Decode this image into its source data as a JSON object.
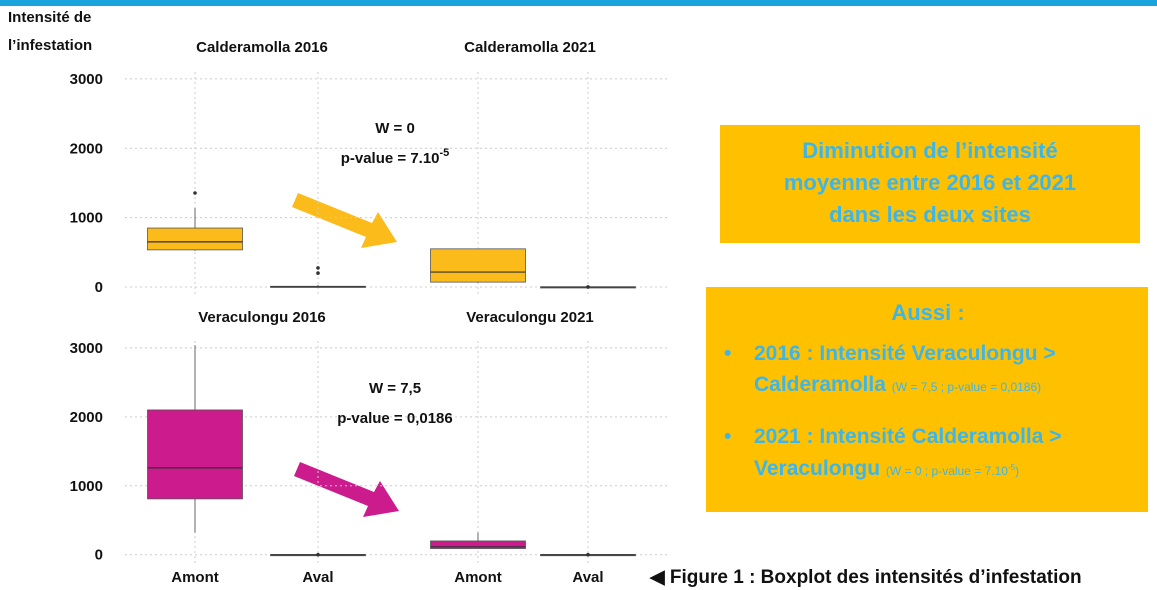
{
  "chart_data": [
    {
      "type": "box",
      "ylabel": [
        "Intensité de",
        "l’infestation"
      ],
      "titles": [
        "Calderamolla 2016",
        "Calderamolla 2021"
      ],
      "categories": [
        null,
        null,
        null,
        null
      ],
      "ylim": [
        -120,
        3100
      ],
      "yticks": [
        0,
        1000,
        2000,
        3000
      ],
      "grid": true,
      "color": "#fbbb1a",
      "boxes": [
        {
          "min": 520,
          "q1": 535,
          "median": 650,
          "q3": 850,
          "max": 1140,
          "outliers": [
            1355
          ]
        },
        {
          "min": 0,
          "q1": 0,
          "median": 0,
          "q3": 10,
          "max": 30,
          "outliers": [
            200,
            275
          ]
        },
        {
          "min": 60,
          "q1": 70,
          "median": 215,
          "q3": 550,
          "max": 550,
          "outliers": []
        },
        {
          "min": 0,
          "q1": 0,
          "median": 0,
          "q3": 0,
          "max": 0,
          "outliers": [
            0
          ]
        }
      ],
      "annotation": {
        "lines": [
          "W = 0",
          "p-value = 7.10"
        ],
        "sup": "-5"
      }
    },
    {
      "type": "box",
      "titles": [
        "Veraculongu 2016",
        "Veraculongu 2021"
      ],
      "categories": [
        "Amont",
        "Aval",
        "Amont",
        "Aval"
      ],
      "ylim": [
        -120,
        3100
      ],
      "yticks": [
        0,
        1000,
        2000,
        3000
      ],
      "grid": true,
      "color": "#cc1b8c",
      "boxes": [
        {
          "min": 320,
          "q1": 810,
          "median": 1260,
          "q3": 2100,
          "max": 3040,
          "outliers": []
        },
        {
          "min": 0,
          "q1": 0,
          "median": 0,
          "q3": 0,
          "max": 0,
          "outliers": [
            0
          ]
        },
        {
          "min": 90,
          "q1": 90,
          "median": 115,
          "q3": 200,
          "max": 320,
          "outliers": []
        },
        {
          "min": 0,
          "q1": 0,
          "median": 0,
          "q3": 0,
          "max": 0,
          "outliers": [
            0
          ]
        }
      ],
      "annotation": {
        "lines": [
          "W = 7,5",
          "p-value = 0,0186"
        ]
      }
    }
  ],
  "conclusion_box": {
    "lines": [
      "Diminution de l’intensité",
      "moyenne entre 2016 et 2021",
      "dans les deux sites"
    ]
  },
  "details_box": {
    "heading": "Aussi :",
    "items": [
      {
        "main1": "2016 : Intensité Veraculongu >",
        "main2": "Calderamolla",
        "detail": "(W = 7,5 ; p-value = 0,0186)"
      },
      {
        "main1": "2021 : Intensité Calderamolla >",
        "main2": "Veraculongu",
        "detail": "(W = 0 ; p-value = 7.10",
        "detail_sup": "-5",
        "detail_end": ")"
      }
    ]
  },
  "caption": "Figure 1 : Boxplot des intensités d’infestation"
}
